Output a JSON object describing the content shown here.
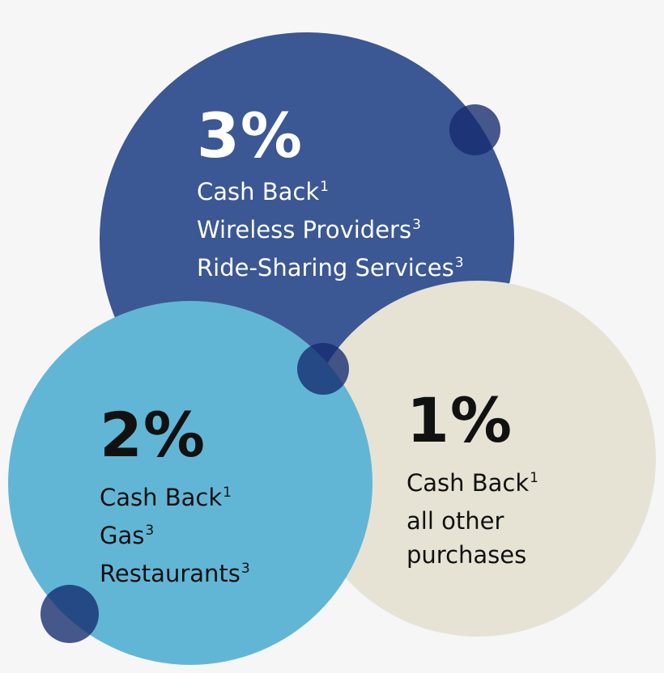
{
  "colors": {
    "background": "#f6f6f7",
    "tier_3": "#3b5794",
    "tier_2": "#62b6d5",
    "tier_1": "#e6e3d5",
    "accent_dot": "#1d3276"
  },
  "tier_3": {
    "rate": "3%",
    "lines": [
      {
        "text": "Cash Back",
        "sup": "1"
      },
      {
        "text": "Wireless Providers",
        "sup": "3"
      },
      {
        "text": "Ride-Sharing Services",
        "sup": "3"
      }
    ]
  },
  "tier_2": {
    "rate": "2%",
    "lines": [
      {
        "text": "Cash Back",
        "sup": "1"
      },
      {
        "text": "Gas",
        "sup": "3"
      },
      {
        "text": "Restaurants",
        "sup": "3"
      }
    ]
  },
  "tier_1": {
    "rate": "1%",
    "lines": [
      {
        "text": "Cash Back",
        "sup": "1"
      },
      {
        "text": "all other",
        "sup": ""
      },
      {
        "text": "purchases",
        "sup": ""
      }
    ]
  }
}
